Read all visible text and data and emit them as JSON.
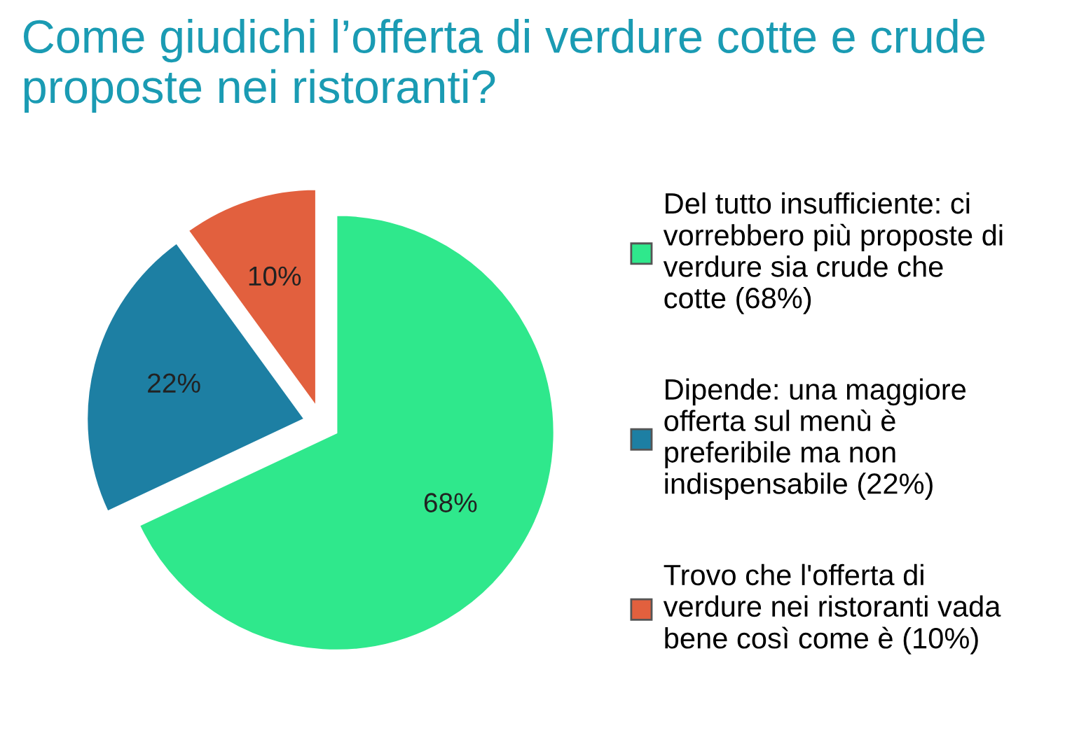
{
  "chart_data": {
    "type": "pie",
    "title": "Come giudichi l’offerta di verdure cotte e crude proposte nei ristoranti?",
    "categories": [
      "Del tutto insufficiente: ci\nvorrebbero più proposte di\nverdure sia crude che\ncotte (68%)",
      "Dipende: una maggiore\nofferta sul menù è\npreferibile ma non\nindispensabile (22%)",
      "Trovo che l'offerta di\nverdure nei ristoranti vada\nbene così come è (10%)"
    ],
    "values": [
      68,
      22,
      10
    ],
    "colors": [
      "#2fe88c",
      "#1d7fa3",
      "#e2603e"
    ],
    "value_labels": [
      "68%",
      "22%",
      "10%"
    ],
    "legend": "right"
  }
}
